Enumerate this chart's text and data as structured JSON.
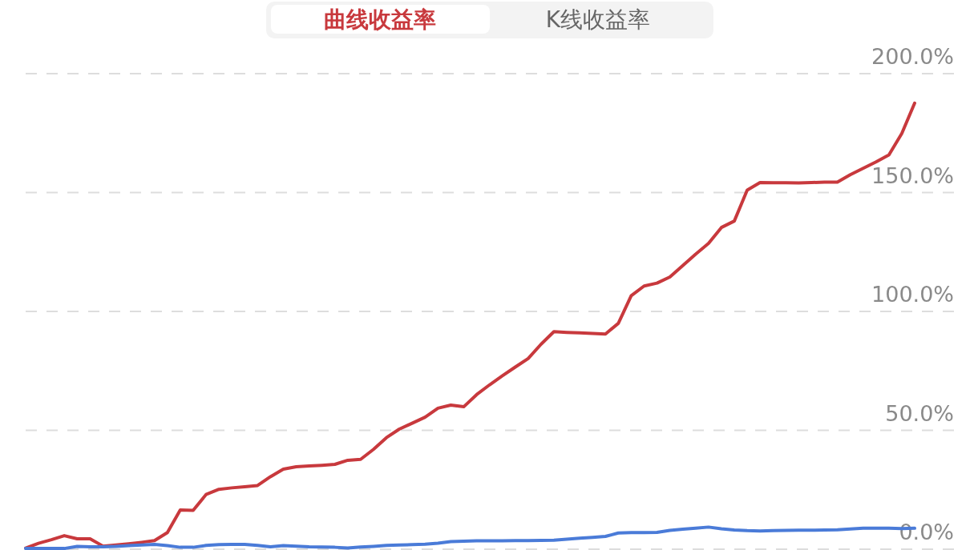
{
  "chart_data": {
    "type": "line",
    "annotations": [
      "曲线收益率",
      "K线收益率"
    ],
    "categories": [
      null,
      null,
      null,
      null,
      null,
      null,
      null,
      null,
      null,
      null,
      null,
      null,
      null,
      null,
      null,
      null,
      null,
      null,
      null,
      null,
      null,
      null,
      null,
      null,
      null,
      null,
      null,
      null,
      null,
      null,
      null,
      null,
      null,
      null,
      null,
      null,
      null,
      null,
      null,
      null,
      null,
      null,
      null,
      null,
      null,
      null,
      null,
      null,
      null,
      null,
      null,
      null,
      null,
      null,
      null,
      null,
      null,
      null,
      null,
      null,
      null,
      null,
      null,
      null,
      null,
      null,
      null,
      null,
      null,
      null
    ],
    "series": [
      {
        "color": "#c8393d",
        "values": [
          0.5,
          2.5,
          4.0,
          5.7,
          4.4,
          4.4,
          1.3,
          1.8,
          2.3,
          2.9,
          3.6,
          7.0,
          16.5,
          16.3,
          23.0,
          25.2,
          25.8,
          26.3,
          26.8,
          30.5,
          33.7,
          34.7,
          35.0,
          35.3,
          35.7,
          37.4,
          37.8,
          42.0,
          46.9,
          50.5,
          53.0,
          55.5,
          59.3,
          60.6,
          59.9,
          65.0,
          69.1,
          72.9,
          76.6,
          80.2,
          86.2,
          91.5,
          91.2,
          91.0,
          90.7,
          90.5,
          95.0,
          106.6,
          110.7,
          111.9,
          114.5,
          119.3,
          124.1,
          128.6,
          135.3,
          138.0,
          151.0,
          154.2,
          154.1,
          154.1,
          154.0,
          154.2,
          154.4,
          154.4,
          157.5,
          160.2,
          162.9,
          165.8,
          174.8,
          187.6
        ]
      },
      {
        "color": "#4a7bd8",
        "values": [
          0.3,
          0.3,
          0.3,
          0.3,
          1.2,
          1.0,
          1.0,
          1.2,
          1.5,
          1.8,
          2.0,
          1.5,
          0.8,
          0.8,
          1.6,
          1.9,
          2.0,
          2.0,
          1.6,
          1.0,
          1.5,
          1.3,
          1.0,
          0.9,
          0.8,
          0.5,
          0.9,
          1.2,
          1.6,
          1.8,
          1.9,
          2.1,
          2.5,
          3.2,
          3.4,
          3.5,
          3.5,
          3.5,
          3.6,
          3.6,
          3.7,
          3.8,
          4.2,
          4.6,
          5.0,
          5.4,
          6.8,
          7.0,
          7.0,
          7.1,
          7.9,
          8.4,
          8.8,
          9.3,
          8.6,
          8.1,
          7.8,
          7.7,
          7.8,
          7.9,
          8.0,
          8.0,
          8.1,
          8.2,
          8.5,
          8.8,
          8.8,
          8.8,
          8.7,
          8.8
        ]
      }
    ],
    "ylim": [
      0,
      200
    ],
    "yticks": [
      {
        "value": 0,
        "label": "0.0%"
      },
      {
        "value": 50,
        "label": "50.0%"
      },
      {
        "value": 100,
        "label": "100.0%"
      },
      {
        "value": 150,
        "label": "150.0%"
      },
      {
        "value": 200,
        "label": "200.0%"
      }
    ],
    "grid": "y",
    "line_style": "solid",
    "marker": "none"
  }
}
